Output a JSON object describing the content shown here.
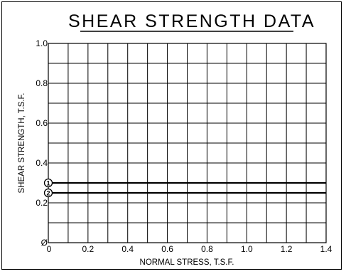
{
  "chart_data": {
    "type": "line",
    "title": "SHEAR STRENGTH DATA",
    "xlabel": "NORMAL STRESS, T.S.F.",
    "ylabel": "SHEAR STRENGTH, T.S.F.",
    "xlim": [
      0,
      1.4
    ],
    "ylim": [
      0,
      1.0
    ],
    "x_ticks": [
      "0",
      "0.2",
      "0.4",
      "0.6",
      "0.8",
      "1.0",
      "1.2",
      "1.4"
    ],
    "y_ticks": [
      "Ø",
      "0.2",
      "0.4",
      "0.6",
      "0.8",
      "1.0"
    ],
    "x_grid_step": 0.1,
    "y_grid_step": 0.1,
    "grid": true,
    "series": [
      {
        "marker_label": "1",
        "y_intercept": 0.3,
        "slope": 0,
        "color": "#000000"
      },
      {
        "marker_label": "2",
        "y_intercept": 0.25,
        "slope": 0,
        "color": "#000000"
      }
    ]
  }
}
